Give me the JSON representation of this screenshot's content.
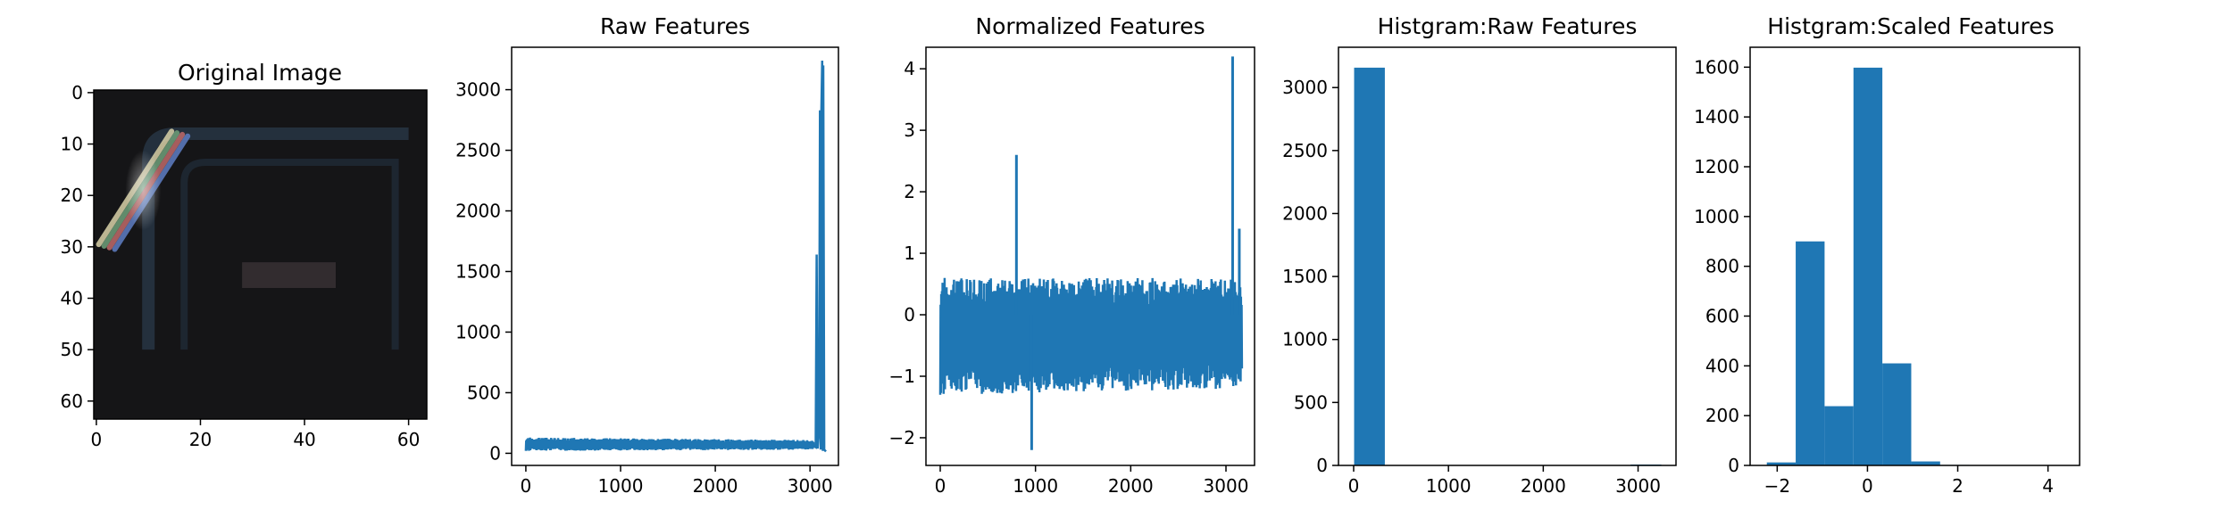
{
  "chart_data": [
    {
      "type": "heatmap",
      "title": "Original Image",
      "xlim": [
        -0.5,
        63.5
      ],
      "ylim": [
        63.5,
        -0.5
      ],
      "x_ticks": [
        0,
        20,
        40,
        60
      ],
      "y_ticks": [
        0,
        10,
        20,
        30,
        40,
        50,
        60
      ],
      "dominant_color": "#151517",
      "features": [
        {
          "desc": "bright rainbow diagonal edge",
          "x_range": [
            2,
            16
          ],
          "y_range": [
            8,
            30
          ],
          "colors": [
            "#d8d2a8",
            "#6fa07a",
            "#c06a6a",
            "#5e7ec4"
          ]
        },
        {
          "desc": "dark bluish arch outline",
          "x_range": [
            10,
            60
          ],
          "y_range": [
            8,
            50
          ],
          "color": "#24303d"
        },
        {
          "desc": "faint horizontal plate",
          "x_range": [
            28,
            46
          ],
          "y_range": [
            33,
            38
          ],
          "color": "#3a3236"
        }
      ]
    },
    {
      "type": "line",
      "title": "Raw Features",
      "xlim": [
        -150,
        3300
      ],
      "ylim": [
        -100,
        3350
      ],
      "x_ticks": [
        0,
        1000,
        2000,
        3000
      ],
      "y_ticks": [
        0,
        500,
        1000,
        1500,
        2000,
        2500,
        3000
      ],
      "color": "#1f77b4",
      "series": [
        {
          "x": [
            0,
            3040
          ],
          "y_low": [
            20,
            30
          ],
          "y_high": [
            130,
            110
          ],
          "desc": "dense band"
        },
        {
          "x": [
            3040,
            3060,
            3070,
            3080,
            3095,
            3105,
            3112,
            3120,
            3128,
            3135,
            3140,
            3150,
            3168
          ],
          "y": [
            60,
            50,
            1640,
            40,
            200,
            2830,
            30,
            2840,
            3240,
            20,
            3200,
            30,
            15
          ]
        }
      ]
    },
    {
      "type": "line",
      "title": "Normalized Features",
      "xlim": [
        -150,
        3300
      ],
      "ylim": [
        -2.45,
        4.35
      ],
      "x_ticks": [
        0,
        1000,
        2000,
        3000
      ],
      "y_ticks": [
        -2,
        -1,
        0,
        1,
        2,
        3,
        4
      ],
      "color": "#1f77b4",
      "series": [
        {
          "x": [
            0,
            3168
          ],
          "y_low": [
            -1.3,
            -1.2
          ],
          "y_high": [
            0.6,
            0.6
          ],
          "desc": "dense band"
        },
        {
          "x": [
            800
          ],
          "y": [
            2.6
          ]
        },
        {
          "x": [
            960
          ],
          "y": [
            -2.2
          ]
        },
        {
          "x": [
            3070
          ],
          "y": [
            4.2
          ]
        },
        {
          "x": [
            3140
          ],
          "y": [
            1.4
          ]
        }
      ]
    },
    {
      "type": "bar",
      "title": "Histgram:Raw Features",
      "xlim": [
        -160,
        3400
      ],
      "ylim": [
        0,
        3320
      ],
      "x_ticks": [
        0,
        1000,
        2000,
        3000
      ],
      "y_ticks": [
        0,
        500,
        1000,
        1500,
        2000,
        2500,
        3000
      ],
      "color": "#1f77b4",
      "bin_edges": [
        5,
        329,
        653,
        977,
        1301,
        1625,
        1949,
        2273,
        2597,
        2921,
        3245
      ],
      "values": [
        3158,
        0,
        0,
        0,
        0,
        0,
        0,
        0,
        3,
        7
      ]
    },
    {
      "type": "bar",
      "title": "Histgram:Scaled Features",
      "xlim": [
        -2.6,
        4.7
      ],
      "ylim": [
        0,
        1680
      ],
      "x_ticks": [
        -2,
        0,
        2,
        4
      ],
      "y_ticks": [
        0,
        200,
        400,
        600,
        800,
        1000,
        1200,
        1400,
        1600
      ],
      "color": "#1f77b4",
      "bin_edges": [
        -2.23,
        -1.59,
        -0.95,
        -0.31,
        0.33,
        0.97,
        1.61,
        2.25,
        2.89,
        3.53,
        4.17
      ],
      "values": [
        12,
        900,
        238,
        1598,
        410,
        16,
        2,
        1,
        0,
        1
      ]
    }
  ]
}
